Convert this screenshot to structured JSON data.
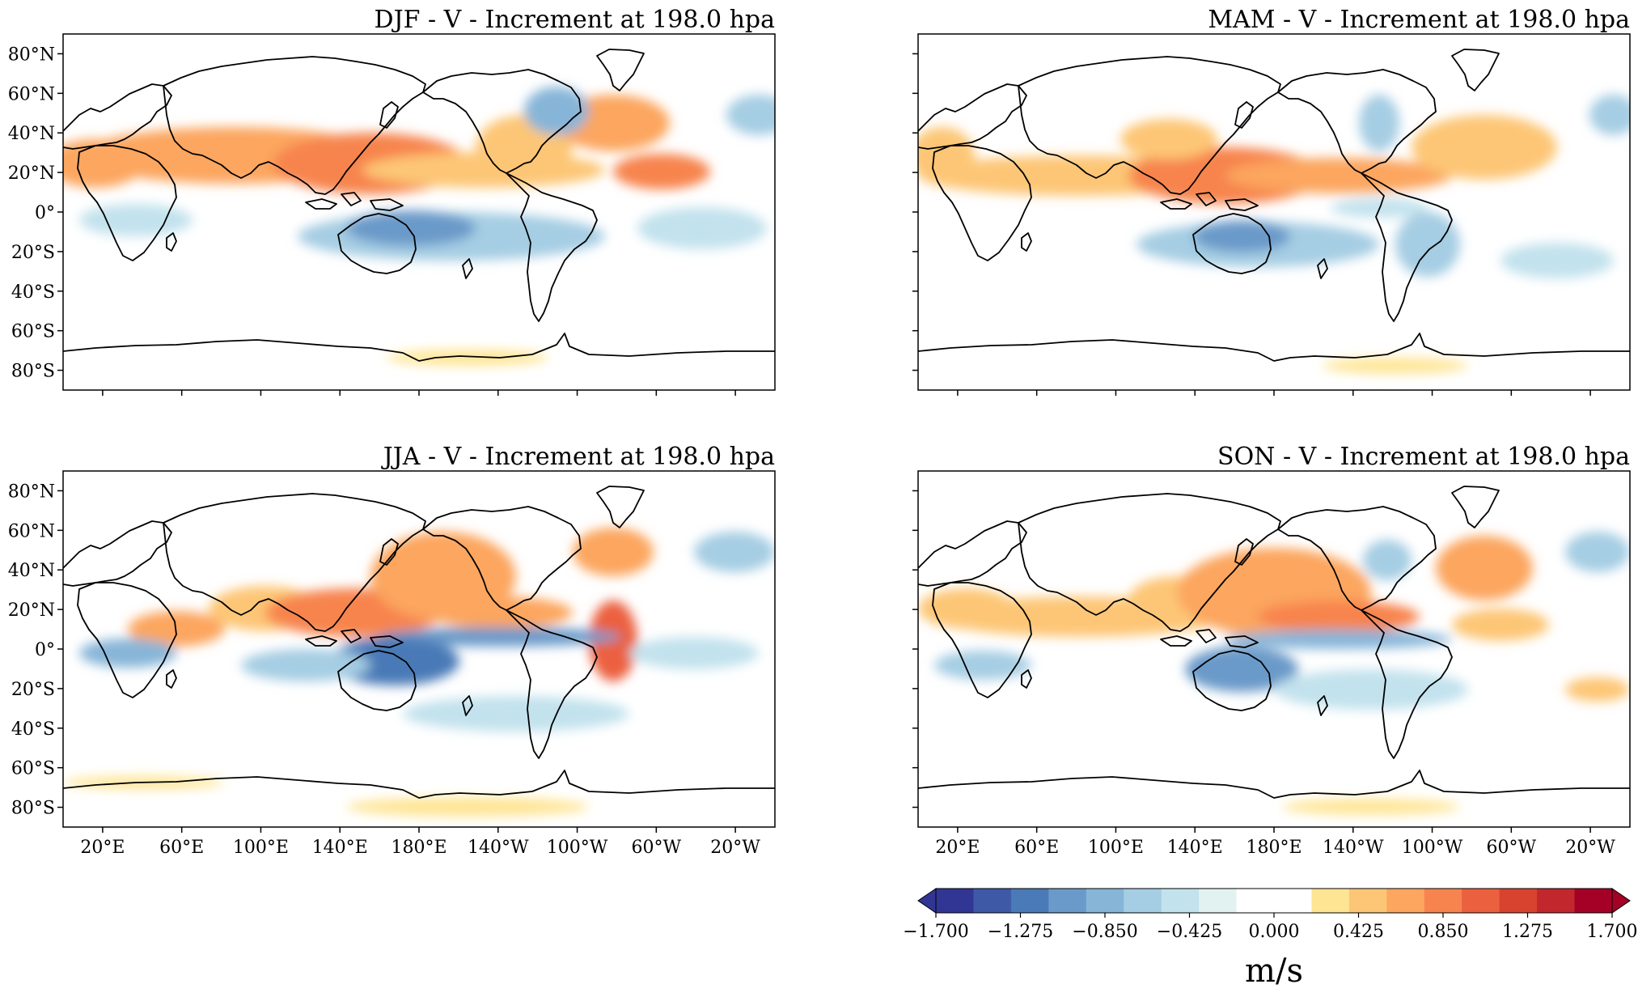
{
  "figure": {
    "panels": [
      {
        "id": "djf",
        "title": "DJF - V - Increment at 198.0 hpa",
        "show_y_labels": true,
        "show_x_labels": false
      },
      {
        "id": "mam",
        "title": "MAM - V - Increment at 198.0 hpa",
        "show_y_labels": false,
        "show_x_labels": false
      },
      {
        "id": "jja",
        "title": "JJA - V - Increment at 198.0 hpa",
        "show_y_labels": true,
        "show_x_labels": true
      },
      {
        "id": "son",
        "title": "SON - V - Increment at 198.0 hpa",
        "show_y_labels": false,
        "show_x_labels": true
      }
    ],
    "lat_labels": [
      "80°N",
      "60°N",
      "40°N",
      "20°N",
      "0°",
      "20°S",
      "40°S",
      "60°S",
      "80°S"
    ],
    "lat_values": [
      80,
      60,
      40,
      20,
      0,
      -20,
      -40,
      -60,
      -80
    ],
    "lon_labels": [
      "20°E",
      "60°E",
      "100°E",
      "140°E",
      "180°E",
      "140°W",
      "100°W",
      "60°W",
      "20°W"
    ],
    "lon_values": [
      20,
      60,
      100,
      140,
      180,
      220,
      260,
      300,
      340
    ],
    "map_extent": {
      "lon_min": 0,
      "lon_max": 360,
      "lat_min": -90,
      "lat_max": 90
    },
    "colorbar": {
      "unit": "m/s",
      "tick_labels": [
        "−1.700",
        "−1.275",
        "−0.850",
        "−0.425",
        "0.000",
        "0.425",
        "0.850",
        "1.275",
        "1.700"
      ],
      "range": [
        -1.7,
        1.7
      ],
      "colors": [
        "#313695",
        "#3e5aa6",
        "#4a7ab7",
        "#6a9ac9",
        "#87b5d8",
        "#a5cde3",
        "#c2e2ed",
        "#e2f2f1",
        "#ffffff",
        "#ffffff",
        "#fee594",
        "#fdc676",
        "#fca65f",
        "#f7844e",
        "#eb603f",
        "#d7432f",
        "#c1272d",
        "#a50026"
      ]
    },
    "colormap_name": "RdYlBu_r",
    "coastline_color": "#000000"
  }
}
